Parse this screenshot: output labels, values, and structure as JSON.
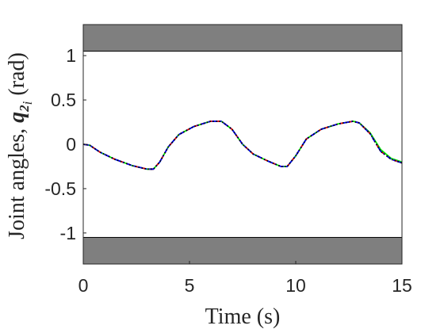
{
  "chart_data": {
    "type": "line",
    "xlabel": "Time (s)",
    "ylabel": {
      "prefix": "Joint angles, ",
      "symbol": "q",
      "symbol_sub": "2",
      "symbol_subsub": "i",
      "unit": " (rad)"
    },
    "xlim": [
      0,
      15
    ],
    "ylim": [
      -1.35,
      1.35
    ],
    "x_ticks": [
      0,
      5,
      10,
      15
    ],
    "x_tick_labels": [
      "0",
      "5",
      "10",
      "15"
    ],
    "y_ticks": [
      -1,
      -0.5,
      0,
      0.5,
      1
    ],
    "y_tick_labels": [
      "-1",
      "-0.5",
      "0",
      "0.5",
      "1"
    ],
    "grid": false,
    "legend": "none",
    "limit_bands": [
      {
        "y_from": 1.05,
        "y_to": 1.35,
        "color": "#7f7f7f"
      },
      {
        "y_from": -1.35,
        "y_to": -1.05,
        "color": "#7f7f7f"
      }
    ],
    "series": [
      {
        "color": "#00ee00",
        "style": "solid",
        "x": [
          0,
          0.3,
          0.8,
          1.5,
          2.3,
          3.0,
          3.3,
          3.6,
          4.0,
          4.5,
          5.2,
          6.0,
          6.5,
          7.0,
          7.5,
          8.0,
          8.7,
          9.3,
          9.6,
          10.0,
          10.5,
          11.2,
          12.0,
          12.7,
          13.0,
          13.5,
          14.0,
          14.5,
          15.0
        ],
        "y": [
          0.0,
          -0.01,
          -0.09,
          -0.17,
          -0.24,
          -0.28,
          -0.28,
          -0.2,
          -0.03,
          0.11,
          0.2,
          0.26,
          0.26,
          0.17,
          0.0,
          -0.11,
          -0.19,
          -0.25,
          -0.25,
          -0.13,
          0.06,
          0.17,
          0.23,
          0.26,
          0.24,
          0.13,
          -0.06,
          -0.16,
          -0.2
        ]
      },
      {
        "color": "#ff0000",
        "style": "dashed",
        "x": [
          0,
          0.3,
          0.8,
          1.5,
          2.3,
          3.0,
          3.3,
          3.6,
          4.0,
          4.5,
          5.2,
          6.0,
          6.5,
          7.0,
          7.5,
          8.0,
          8.7,
          9.3,
          9.6,
          10.0,
          10.5,
          11.2,
          12.0,
          12.7,
          13.0,
          13.5,
          14.0,
          14.5,
          15.0
        ],
        "y": [
          0.0,
          -0.01,
          -0.09,
          -0.17,
          -0.24,
          -0.28,
          -0.28,
          -0.2,
          -0.03,
          0.11,
          0.2,
          0.26,
          0.26,
          0.17,
          0.0,
          -0.11,
          -0.19,
          -0.25,
          -0.25,
          -0.13,
          0.06,
          0.17,
          0.23,
          0.26,
          0.24,
          0.12,
          -0.08,
          -0.17,
          -0.21
        ]
      },
      {
        "color": "#0000ff",
        "style": "dashdot",
        "x": [
          0,
          0.3,
          0.8,
          1.5,
          2.3,
          3.0,
          3.3,
          3.6,
          4.0,
          4.5,
          5.2,
          6.0,
          6.5,
          7.0,
          7.5,
          8.0,
          8.7,
          9.3,
          9.6,
          10.0,
          10.5,
          11.2,
          12.0,
          12.7,
          13.0,
          13.5,
          14.0,
          14.5,
          15.0
        ],
        "y": [
          0.0,
          -0.01,
          -0.09,
          -0.17,
          -0.24,
          -0.28,
          -0.28,
          -0.2,
          -0.03,
          0.11,
          0.2,
          0.26,
          0.26,
          0.17,
          0.0,
          -0.11,
          -0.19,
          -0.25,
          -0.25,
          -0.13,
          0.06,
          0.17,
          0.23,
          0.26,
          0.24,
          0.12,
          -0.08,
          -0.17,
          -0.21
        ]
      },
      {
        "color": "#000000",
        "style": "dotted",
        "x": [
          0,
          0.3,
          0.8,
          1.5,
          2.3,
          3.0,
          3.3,
          3.6,
          4.0,
          4.5,
          5.2,
          6.0,
          6.5,
          7.0,
          7.5,
          8.0,
          8.7,
          9.3,
          9.6,
          10.0,
          10.5,
          11.2,
          12.0,
          12.7,
          13.0,
          13.5,
          14.0,
          14.5,
          15.0
        ],
        "y": [
          0.0,
          -0.01,
          -0.09,
          -0.17,
          -0.24,
          -0.28,
          -0.28,
          -0.2,
          -0.03,
          0.11,
          0.2,
          0.26,
          0.26,
          0.17,
          0.0,
          -0.11,
          -0.19,
          -0.25,
          -0.25,
          -0.13,
          0.06,
          0.17,
          0.23,
          0.26,
          0.24,
          0.12,
          -0.08,
          -0.17,
          -0.21
        ]
      }
    ]
  }
}
